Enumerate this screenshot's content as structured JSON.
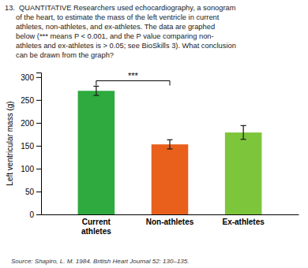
{
  "chart_data": {
    "type": "bar",
    "annotations": [
      "13.  QUANTITATIVE Researchers used echocardiography, a sonogram",
      "of the heart, to estimate the mass of the left ventricle in current",
      "athletes, non-athletes, and ex-athletes. The data are graphed",
      "below (*** means P < 0.001, and the P value comparing non-",
      "athletes and ex-athletes is > 0.05; see BioSkills 3). What conclusion",
      "can be drawn from the graph?"
    ],
    "categories": [
      "Current\nathletes",
      "Non-athletes",
      "Ex-athletes"
    ],
    "values": [
      270,
      153,
      179
    ],
    "errors": [
      10,
      10,
      15
    ],
    "colors": [
      "#2eaa3f",
      "#e8601c",
      "#7dc63b"
    ],
    "ylabel": "Left ventricular mass (g)",
    "ylim": [
      0,
      310
    ],
    "yticks": [
      0,
      50,
      100,
      150,
      200,
      250,
      300
    ],
    "significance": {
      "categories": [
        "Current\nathletes",
        "Non-athletes"
      ],
      "y": 292,
      "label": "***"
    },
    "source": "Source: Shapiro, L. M. 1984. British Heart Journal 52: 130–135."
  }
}
